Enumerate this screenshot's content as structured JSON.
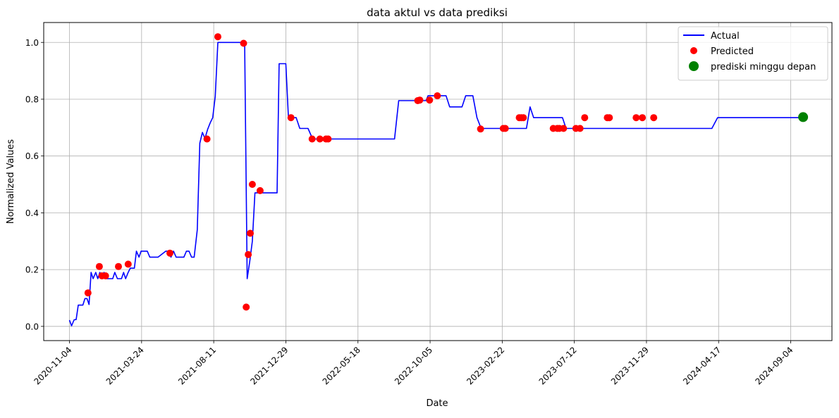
{
  "chart_data": {
    "type": "line",
    "title": "data aktul vs data prediksi",
    "xlabel": "Date",
    "ylabel": "Normalized Values",
    "x_ticks": [
      "2020-11-04",
      "2021-03-24",
      "2021-08-11",
      "2021-12-29",
      "2022-05-18",
      "2022-10-05",
      "2023-02-22",
      "2023-07-12",
      "2023-11-29",
      "2024-04-17",
      "2024-09-04"
    ],
    "x_range": [
      "2020-09-15",
      "2024-11-23"
    ],
    "y_ticks": [
      0.0,
      0.2,
      0.4,
      0.6,
      0.8,
      1.0
    ],
    "y_range": [
      -0.05,
      1.07
    ],
    "grid": true,
    "legend_position": "top-right",
    "series": [
      {
        "name": "Actual",
        "kind": "line",
        "color": "#0000ff",
        "points": [
          [
            "2020-11-04",
            0.022
          ],
          [
            "2020-11-08",
            0.002
          ],
          [
            "2020-11-13",
            0.023
          ],
          [
            "2020-11-17",
            0.024
          ],
          [
            "2020-11-21",
            0.075
          ],
          [
            "2020-11-25",
            0.075
          ],
          [
            "2020-11-30",
            0.075
          ],
          [
            "2020-12-04",
            0.098
          ],
          [
            "2020-12-08",
            0.098
          ],
          [
            "2020-12-12",
            0.077
          ],
          [
            "2020-12-16",
            0.19
          ],
          [
            "2020-12-20",
            0.168
          ],
          [
            "2020-12-25",
            0.19
          ],
          [
            "2020-12-29",
            0.168
          ],
          [
            "2021-01-02",
            0.19
          ],
          [
            "2021-01-06",
            0.168
          ],
          [
            "2021-01-10",
            0.19
          ],
          [
            "2021-01-15",
            0.168
          ],
          [
            "2021-01-19",
            0.168
          ],
          [
            "2021-01-23",
            0.168
          ],
          [
            "2021-01-27",
            0.168
          ],
          [
            "2021-01-31",
            0.19
          ],
          [
            "2021-02-05",
            0.168
          ],
          [
            "2021-02-09",
            0.168
          ],
          [
            "2021-02-13",
            0.168
          ],
          [
            "2021-02-17",
            0.19
          ],
          [
            "2021-02-21",
            0.168
          ],
          [
            "2021-02-26",
            0.19
          ],
          [
            "2021-03-02",
            0.205
          ],
          [
            "2021-03-06",
            0.205
          ],
          [
            "2021-03-10",
            0.205
          ],
          [
            "2021-03-14",
            0.265
          ],
          [
            "2021-03-19",
            0.244
          ],
          [
            "2021-03-23",
            0.265
          ],
          [
            "2021-03-27",
            0.265
          ],
          [
            "2021-03-31",
            0.265
          ],
          [
            "2021-04-04",
            0.265
          ],
          [
            "2021-04-09",
            0.244
          ],
          [
            "2021-04-13",
            0.244
          ],
          [
            "2021-04-17",
            0.244
          ],
          [
            "2021-04-21",
            0.244
          ],
          [
            "2021-04-25",
            0.244
          ],
          [
            "2021-05-10",
            0.265
          ],
          [
            "2021-05-15",
            0.265
          ],
          [
            "2021-05-20",
            0.244
          ],
          [
            "2021-05-25",
            0.265
          ],
          [
            "2021-05-30",
            0.244
          ],
          [
            "2021-06-04",
            0.244
          ],
          [
            "2021-06-09",
            0.244
          ],
          [
            "2021-06-14",
            0.244
          ],
          [
            "2021-06-19",
            0.265
          ],
          [
            "2021-06-24",
            0.265
          ],
          [
            "2021-06-29",
            0.244
          ],
          [
            "2021-07-04",
            0.244
          ],
          [
            "2021-07-10",
            0.34
          ],
          [
            "2021-07-15",
            0.645
          ],
          [
            "2021-07-20",
            0.683
          ],
          [
            "2021-07-25",
            0.662
          ],
          [
            "2021-07-30",
            0.693
          ],
          [
            "2021-08-04",
            0.716
          ],
          [
            "2021-08-09",
            0.735
          ],
          [
            "2021-08-14",
            0.81
          ],
          [
            "2021-08-19",
            1.0
          ],
          [
            "2021-08-24",
            1.0
          ],
          [
            "2021-09-20",
            1.0
          ],
          [
            "2021-10-10",
            1.0
          ],
          [
            "2021-10-15",
            0.168
          ],
          [
            "2021-10-20",
            0.23
          ],
          [
            "2021-10-25",
            0.3
          ],
          [
            "2021-10-30",
            0.47
          ],
          [
            "2021-11-04",
            0.47
          ],
          [
            "2021-11-30",
            0.47
          ],
          [
            "2021-12-12",
            0.47
          ],
          [
            "2021-12-16",
            0.925
          ],
          [
            "2021-12-20",
            0.925
          ],
          [
            "2021-12-29",
            0.925
          ],
          [
            "2022-01-03",
            0.735
          ],
          [
            "2022-01-08",
            0.735
          ],
          [
            "2022-01-13",
            0.735
          ],
          [
            "2022-01-18",
            0.735
          ],
          [
            "2022-01-25",
            0.697
          ],
          [
            "2022-02-10",
            0.697
          ],
          [
            "2022-02-19",
            0.66
          ],
          [
            "2022-07-28",
            0.66
          ],
          [
            "2022-08-05",
            0.795
          ],
          [
            "2022-08-20",
            0.795
          ],
          [
            "2022-08-30",
            0.795
          ],
          [
            "2022-09-12",
            0.795
          ],
          [
            "2022-09-27",
            0.795
          ],
          [
            "2022-10-01",
            0.812
          ],
          [
            "2022-10-12",
            0.812
          ],
          [
            "2022-11-05",
            0.812
          ],
          [
            "2022-11-12",
            0.773
          ],
          [
            "2022-11-25",
            0.773
          ],
          [
            "2022-12-06",
            0.773
          ],
          [
            "2022-12-13",
            0.812
          ],
          [
            "2022-12-27",
            0.812
          ],
          [
            "2023-01-04",
            0.735
          ],
          [
            "2023-01-12",
            0.697
          ],
          [
            "2023-02-14",
            0.697
          ],
          [
            "2023-03-27",
            0.697
          ],
          [
            "2023-04-03",
            0.697
          ],
          [
            "2023-04-10",
            0.697
          ],
          [
            "2023-04-17",
            0.773
          ],
          [
            "2023-04-24",
            0.735
          ],
          [
            "2023-05-01",
            0.735
          ],
          [
            "2023-05-08",
            0.735
          ],
          [
            "2023-05-15",
            0.735
          ],
          [
            "2023-05-22",
            0.735
          ],
          [
            "2023-05-29",
            0.735
          ],
          [
            "2023-06-05",
            0.735
          ],
          [
            "2023-06-12",
            0.735
          ],
          [
            "2023-06-19",
            0.735
          ],
          [
            "2023-06-26",
            0.697
          ],
          [
            "2023-07-10",
            0.697
          ],
          [
            "2023-07-24",
            0.697
          ],
          [
            "2023-08-07",
            0.697
          ],
          [
            "2023-08-21",
            0.697
          ],
          [
            "2023-09-04",
            0.697
          ],
          [
            "2023-09-18",
            0.697
          ],
          [
            "2023-10-02",
            0.697
          ],
          [
            "2023-10-16",
            0.697
          ],
          [
            "2023-10-30",
            0.697
          ],
          [
            "2023-11-13",
            0.697
          ],
          [
            "2023-11-20",
            0.697
          ],
          [
            "2023-11-27",
            0.697
          ],
          [
            "2023-12-04",
            0.697
          ],
          [
            "2023-12-11",
            0.697
          ],
          [
            "2023-12-18",
            0.697
          ],
          [
            "2023-12-25",
            0.697
          ],
          [
            "2024-01-01",
            0.697
          ],
          [
            "2024-01-15",
            0.697
          ],
          [
            "2024-01-29",
            0.697
          ],
          [
            "2024-02-12",
            0.697
          ],
          [
            "2024-02-26",
            0.697
          ],
          [
            "2024-03-11",
            0.697
          ],
          [
            "2024-03-25",
            0.697
          ],
          [
            "2024-04-04",
            0.697
          ],
          [
            "2024-04-15",
            0.735
          ],
          [
            "2024-04-29",
            0.735
          ],
          [
            "2024-05-13",
            0.735
          ],
          [
            "2024-05-27",
            0.735
          ],
          [
            "2024-06-10",
            0.735
          ],
          [
            "2024-06-24",
            0.735
          ],
          [
            "2024-07-08",
            0.735
          ],
          [
            "2024-07-22",
            0.735
          ],
          [
            "2024-08-05",
            0.735
          ],
          [
            "2024-08-19",
            0.735
          ],
          [
            "2024-09-02",
            0.735
          ],
          [
            "2024-09-16",
            0.735
          ],
          [
            "2024-09-30",
            0.735
          ]
        ]
      },
      {
        "name": "Predicted",
        "kind": "scatter",
        "color": "#ff0000",
        "points": [
          [
            "2020-12-10",
            0.118
          ],
          [
            "2021-01-01",
            0.211
          ],
          [
            "2021-01-06",
            0.178
          ],
          [
            "2021-01-13",
            0.178
          ],
          [
            "2021-02-07",
            0.211
          ],
          [
            "2021-02-26",
            0.219
          ],
          [
            "2021-05-18",
            0.258
          ],
          [
            "2021-07-29",
            0.66
          ],
          [
            "2021-08-19",
            1.02
          ],
          [
            "2021-10-08",
            0.997
          ],
          [
            "2021-10-13",
            0.068
          ],
          [
            "2021-10-17",
            0.253
          ],
          [
            "2021-10-21",
            0.328
          ],
          [
            "2021-10-25",
            0.5
          ],
          [
            "2021-11-09",
            0.478
          ],
          [
            "2022-01-08",
            0.735
          ],
          [
            "2022-02-18",
            0.66
          ],
          [
            "2022-03-05",
            0.66
          ],
          [
            "2022-03-17",
            0.66
          ],
          [
            "2022-03-21",
            0.66
          ],
          [
            "2022-09-11",
            0.795
          ],
          [
            "2022-09-15",
            0.797
          ],
          [
            "2022-10-04",
            0.797
          ],
          [
            "2022-10-19",
            0.812
          ],
          [
            "2023-01-11",
            0.695
          ],
          [
            "2023-02-24",
            0.697
          ],
          [
            "2023-02-28",
            0.697
          ],
          [
            "2023-03-27",
            0.735
          ],
          [
            "2023-03-31",
            0.735
          ],
          [
            "2023-04-04",
            0.735
          ],
          [
            "2023-06-01",
            0.697
          ],
          [
            "2023-06-09",
            0.697
          ],
          [
            "2023-06-13",
            0.697
          ],
          [
            "2023-06-21",
            0.697
          ],
          [
            "2023-07-15",
            0.697
          ],
          [
            "2023-07-23",
            0.697
          ],
          [
            "2023-08-01",
            0.735
          ],
          [
            "2023-09-14",
            0.735
          ],
          [
            "2023-09-18",
            0.735
          ],
          [
            "2023-11-09",
            0.735
          ],
          [
            "2023-11-21",
            0.735
          ],
          [
            "2023-12-13",
            0.735
          ]
        ]
      },
      {
        "name": "prediski minggu depan",
        "kind": "scatter",
        "color": "#008000",
        "points": [
          [
            "2024-09-28",
            0.737
          ]
        ]
      }
    ]
  }
}
